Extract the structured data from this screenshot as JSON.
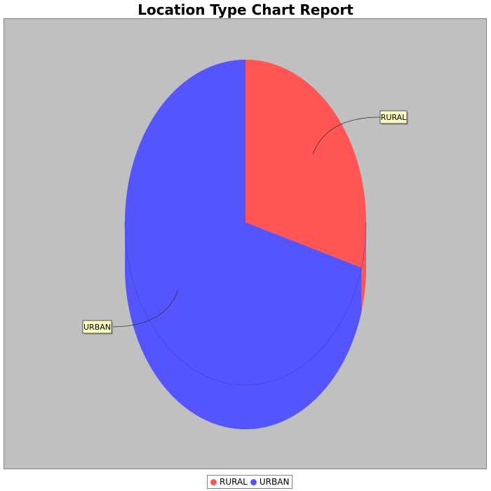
{
  "chart_data": {
    "type": "pie",
    "title": "Location Type Chart Report",
    "style": "3d",
    "categories": [
      "RURAL",
      "URBAN"
    ],
    "values": [
      29.5,
      70.5
    ],
    "colors": {
      "RURAL": "#ff5555",
      "URBAN": "#5555ff"
    },
    "legend_position": "bottom",
    "background": "#c0c0c0"
  },
  "legend": {
    "items": [
      {
        "label": "RURAL",
        "color": "#ff5555"
      },
      {
        "label": "URBAN",
        "color": "#5555ff"
      }
    ]
  }
}
